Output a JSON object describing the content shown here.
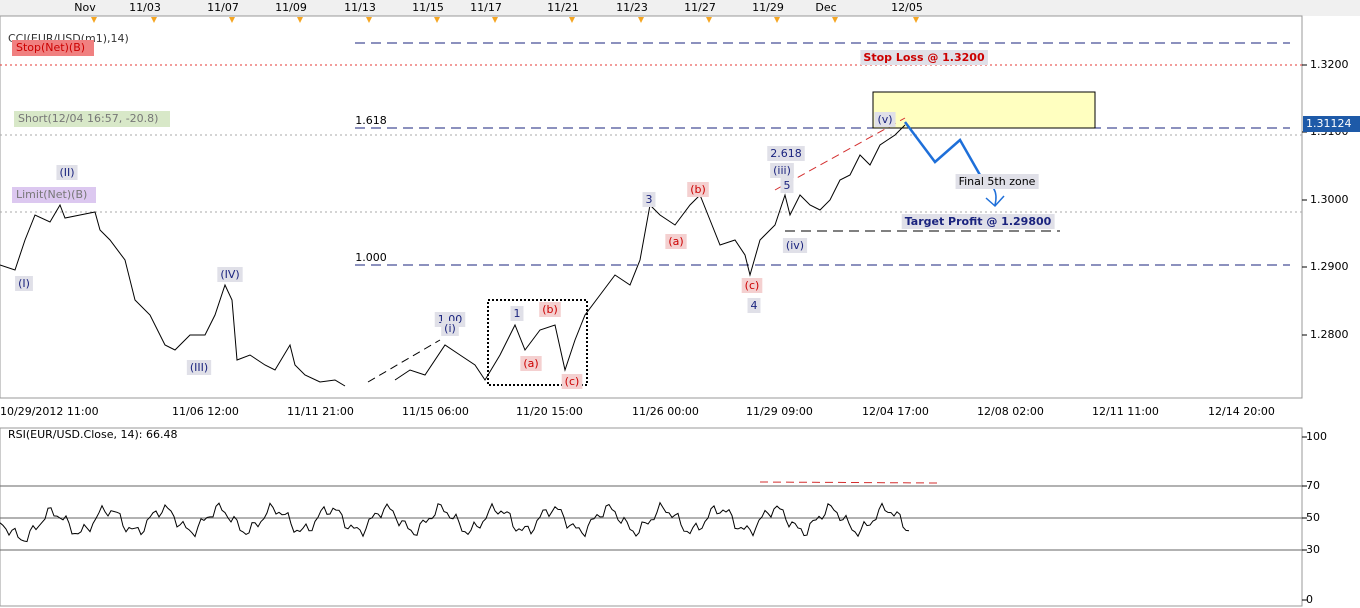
{
  "top_axis": {
    "labels": [
      "Nov",
      "11/03",
      "11/07",
      "11/09",
      "11/13",
      "11/15",
      "11/17",
      "11/21",
      "11/23",
      "11/27",
      "11/29",
      "Dec",
      "12/05"
    ]
  },
  "price_panel": {
    "indicator": "CCI(EUR/USD(m1),14)",
    "orders": [
      "Stop(Net)(B)",
      "Short(12/04 16:57, -20.8)",
      "Limit(Net)(B)"
    ],
    "price_ticks": [
      "1.3200",
      "1.3100",
      "1.3000",
      "1.2900",
      "1.2800"
    ],
    "current_price": "1.31124",
    "annotations": [
      "(I)",
      "(II)",
      "(III)",
      "(IV)",
      "1.00",
      "(i)",
      "1",
      "(a)",
      "(b)",
      "(c)",
      "3",
      "(a)",
      "(b)",
      "(c)",
      "4",
      "2.618",
      "(iii)",
      "5",
      "(iv)",
      "(v)",
      "1.618",
      "1.000",
      "Stop Loss @ 1.3200",
      "Target Profit @ 1.29800",
      "Final 5th zone"
    ],
    "time_labels": [
      "10/29/2012 11:00",
      "11/06 12:00",
      "11/11 21:00",
      "11/15 06:00",
      "11/20 15:00",
      "11/26 00:00",
      "11/29 09:00",
      "12/04 17:00",
      "12/08 02:00",
      "12/11 11:00",
      "12/14 20:00"
    ]
  },
  "rsi_panel": {
    "title": "RSI(EUR/USD.Close, 14): 66.48",
    "ticks": [
      "100",
      "70",
      "50",
      "30",
      "0"
    ]
  }
}
